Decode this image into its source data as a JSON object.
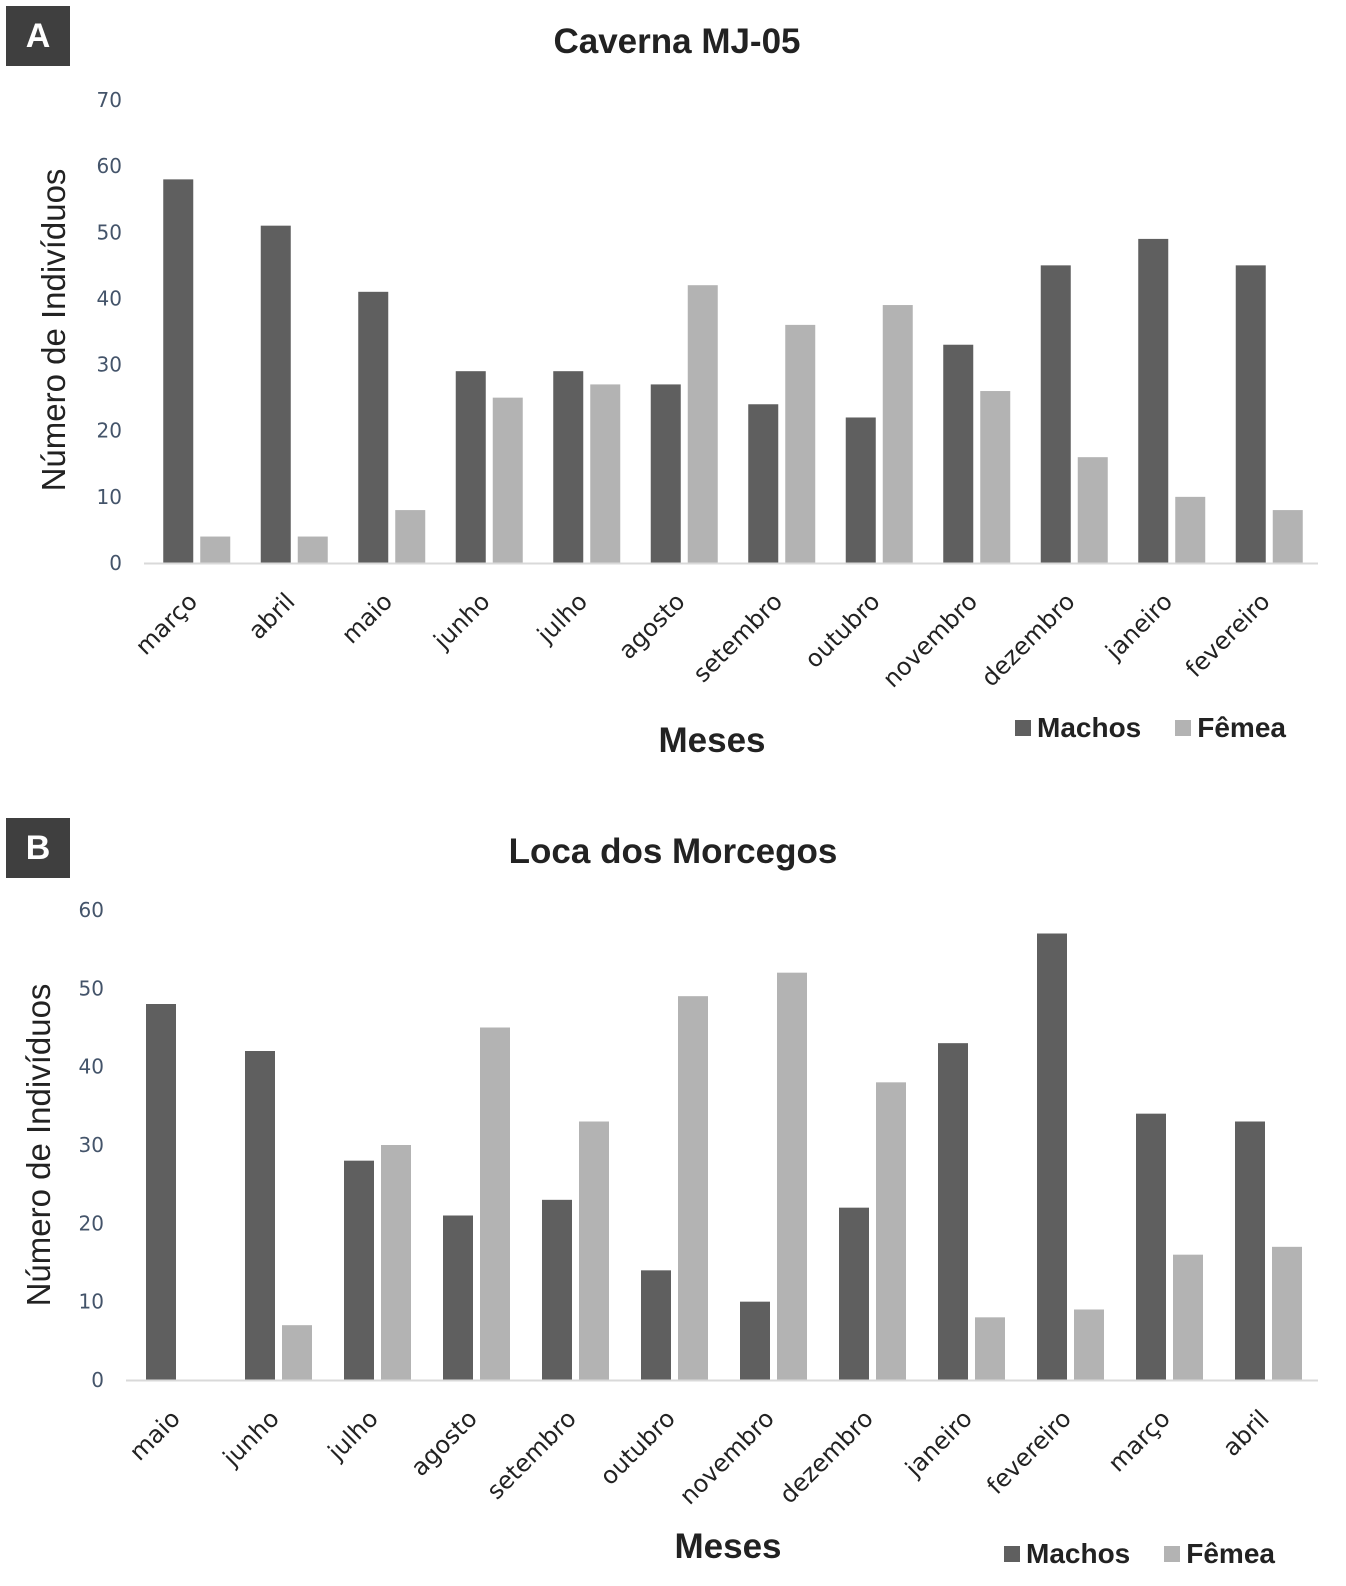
{
  "colors": {
    "machos": "#5f5f5f",
    "femea": "#b3b3b3",
    "badge": "#3f3f3f",
    "axis_text": "#44546a"
  },
  "panels": [
    {
      "label": "A",
      "legend": {
        "machos": "Machos",
        "femea": "Fêmea"
      }
    },
    {
      "label": "B",
      "legend": {
        "machos": "Machos",
        "femea": "Fêmea"
      }
    }
  ],
  "chart_data": [
    {
      "type": "bar",
      "title": "Caverna MJ-05",
      "xlabel": "Meses",
      "ylabel": "Número de Indivíduos",
      "ylim": [
        0,
        70
      ],
      "yticks": [
        0,
        10,
        20,
        30,
        40,
        50,
        60,
        70
      ],
      "categories": [
        "março",
        "abril",
        "maio",
        "junho",
        "julho",
        "agosto",
        "setembro",
        "outubro",
        "novembro",
        "dezembro",
        "janeiro",
        "fevereiro"
      ],
      "series": [
        {
          "name": "Machos",
          "values": [
            58,
            51,
            41,
            29,
            29,
            27,
            24,
            22,
            33,
            45,
            49,
            45
          ]
        },
        {
          "name": "Fêmea",
          "values": [
            4,
            4,
            8,
            25,
            27,
            42,
            36,
            39,
            26,
            16,
            10,
            8
          ]
        }
      ],
      "legend_position": "bottom-right",
      "grid": false
    },
    {
      "type": "bar",
      "title": "Loca dos Morcegos",
      "xlabel": "Meses",
      "ylabel": "Número de Indivíduos",
      "ylim": [
        0,
        60
      ],
      "yticks": [
        0,
        10,
        20,
        30,
        40,
        50,
        60
      ],
      "categories": [
        "maio",
        "junho",
        "julho",
        "agosto",
        "setembro",
        "outubro",
        "novembro",
        "dezembro",
        "janeiro",
        "fevereiro",
        "março",
        "abril"
      ],
      "series": [
        {
          "name": "Machos",
          "values": [
            48,
            42,
            28,
            21,
            23,
            14,
            10,
            22,
            43,
            57,
            34,
            33
          ]
        },
        {
          "name": "Fêmea",
          "values": [
            0,
            7,
            30,
            45,
            33,
            49,
            52,
            38,
            8,
            9,
            16,
            17
          ]
        }
      ],
      "legend_position": "bottom-right",
      "grid": false
    }
  ]
}
